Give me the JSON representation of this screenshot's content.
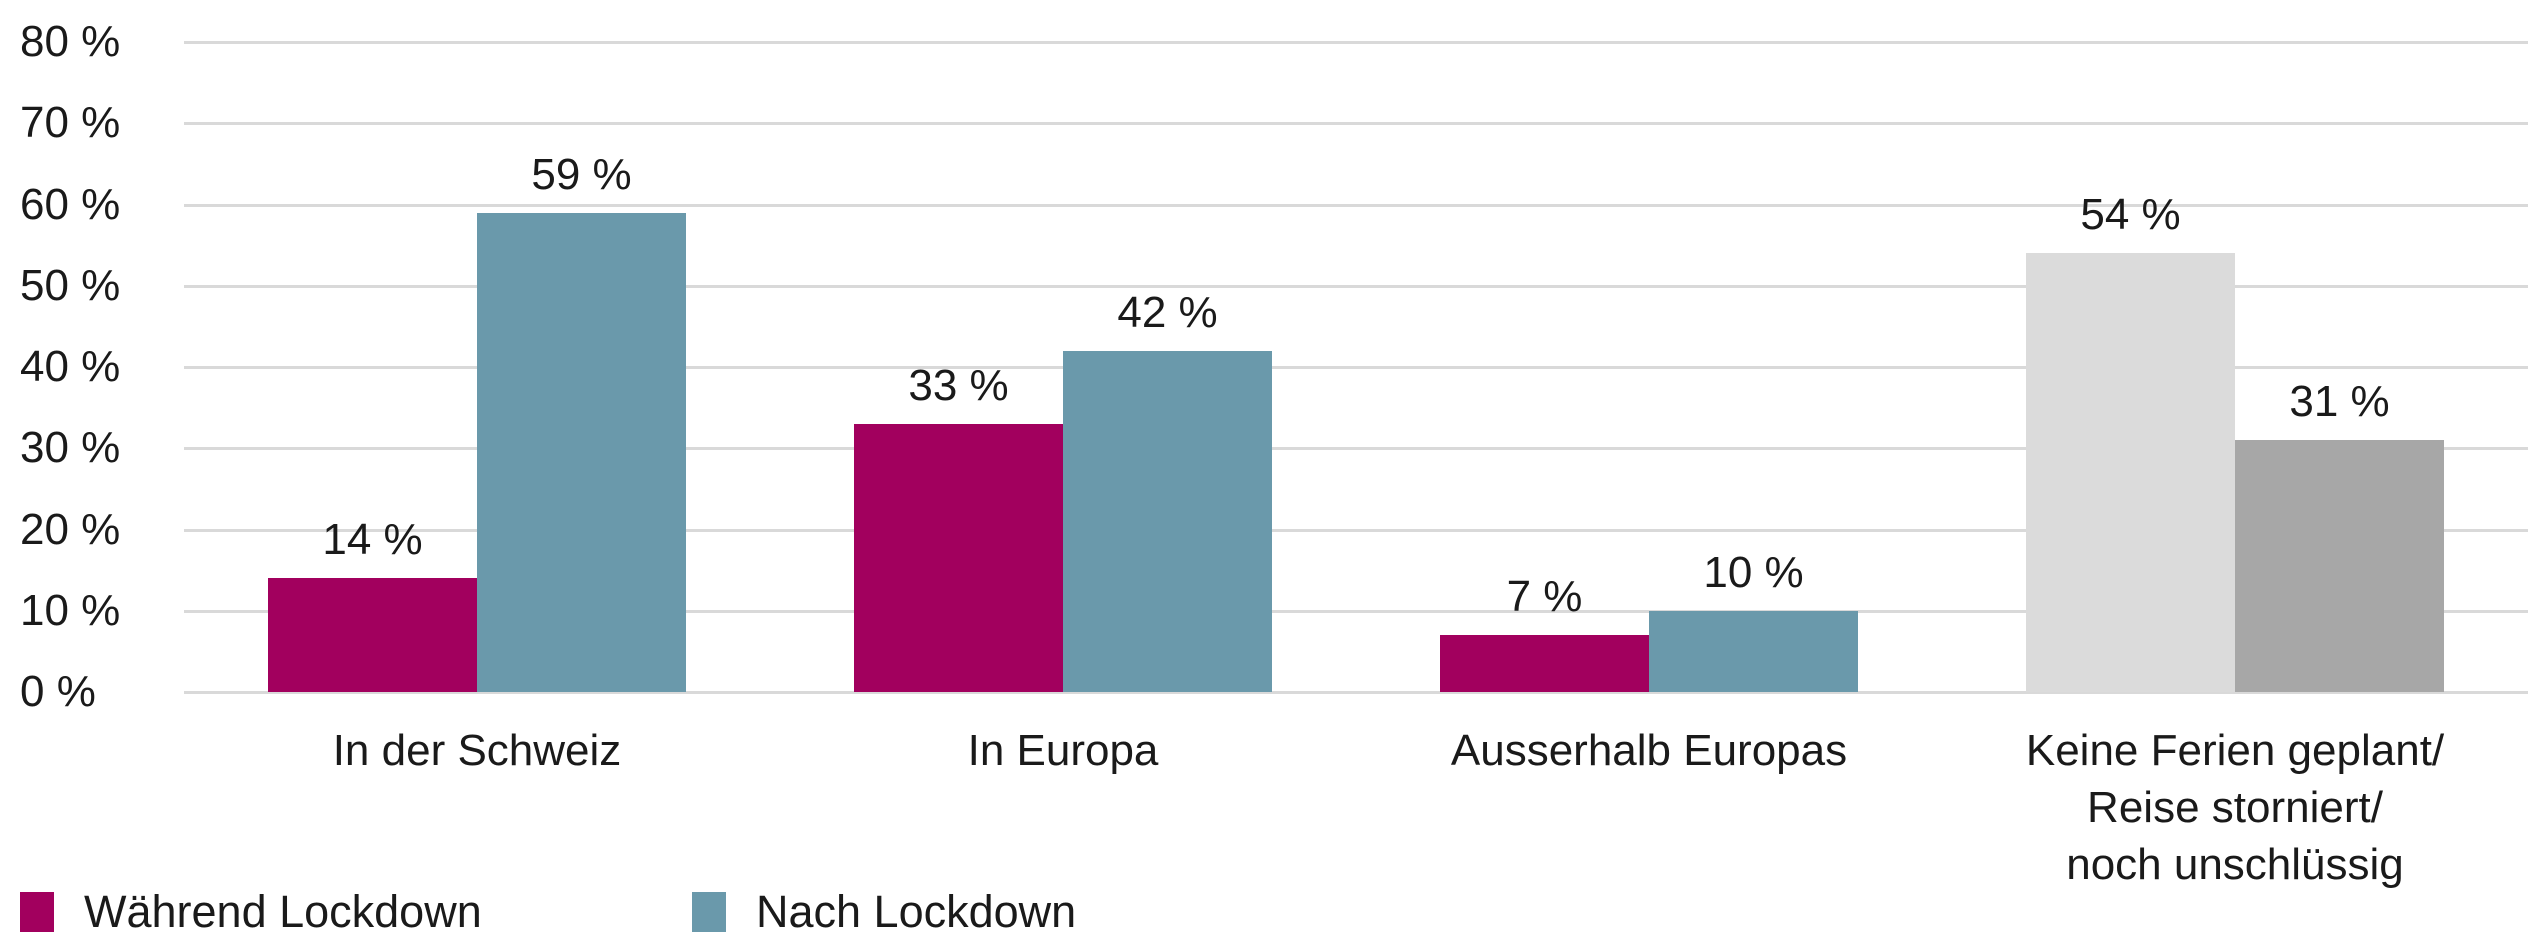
{
  "chart_data": {
    "type": "bar",
    "title": "",
    "categories": [
      [
        "In der Schweiz"
      ],
      [
        "In Europa"
      ],
      [
        "Ausserhalb Europas"
      ],
      [
        "Keine Ferien geplant/",
        "Reise storniert/",
        "noch unschlüssig"
      ]
    ],
    "series": [
      {
        "name": "Während Lockdown",
        "color": "#A2005E",
        "values": [
          14,
          33,
          7,
          54
        ],
        "value_labels": [
          "14 %",
          "33 %",
          "7 %",
          "54 %"
        ],
        "bar_colors": [
          "#A2005E",
          "#A2005E",
          "#A2005E",
          "#DBDBDB"
        ]
      },
      {
        "name": "Nach Lockdown",
        "color": "#6A99AB",
        "values": [
          59,
          42,
          10,
          31
        ],
        "value_labels": [
          "59 %",
          "42 %",
          "10 %",
          "31 %"
        ],
        "bar_colors": [
          "#6A99AB",
          "#6A99AB",
          "#6A99AB",
          "#A7A7A7"
        ]
      }
    ],
    "y_axis": {
      "min": 0,
      "max": 80,
      "step": 10,
      "tick_labels": [
        "0 %",
        "10 %",
        "20 %",
        "30 %",
        "40 %",
        "50 %",
        "60 %",
        "70 %",
        "80 %"
      ]
    },
    "grid": true,
    "gridline_color": "#D9D9D9",
    "text_color": "#1A1A1A",
    "background": "#FFFFFF",
    "legend_position": "bottom-left"
  }
}
